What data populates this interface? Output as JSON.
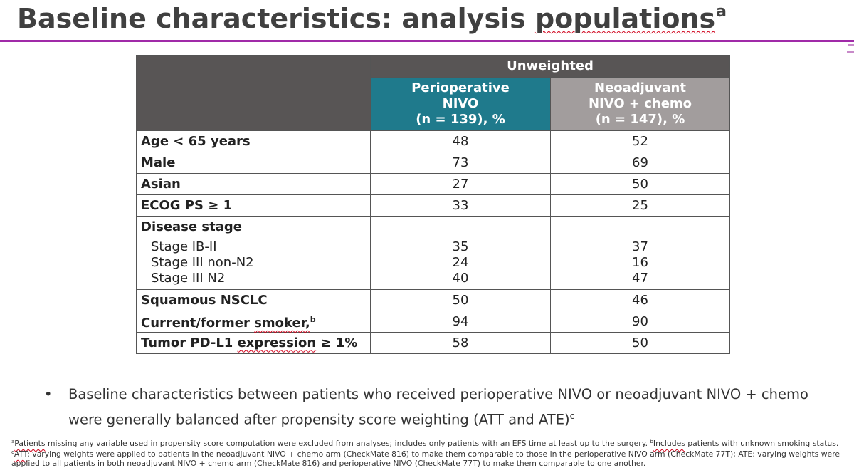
{
  "title": {
    "text_a": "Baseline characteristics: analysis ",
    "text_b": "populations",
    "superscript": "a"
  },
  "table": {
    "group_header": "Unweighted",
    "columns": [
      {
        "line1": "Perioperative",
        "line2": "NIVO",
        "line3": "(n = 139), %"
      },
      {
        "line1": "Neoadjuvant",
        "line2": "NIVO + chemo",
        "line3": "(n = 147), %"
      }
    ],
    "rows": [
      {
        "label": "Age < 65 years",
        "v1": "48",
        "v2": "52"
      },
      {
        "label": "Male",
        "v1": "73",
        "v2": "69"
      },
      {
        "label": "Asian",
        "v1": "27",
        "v2": "50"
      },
      {
        "label": "ECOG PS ≥ 1",
        "v1": "33",
        "v2": "25"
      }
    ],
    "disease_stage": {
      "label": "Disease stage",
      "subrows": [
        {
          "label": "Stage IB-II",
          "v1": "35",
          "v2": "37"
        },
        {
          "label": "Stage III non-N2",
          "v1": "24",
          "v2": "16"
        },
        {
          "label": "Stage III N2",
          "v1": "40",
          "v2": "47"
        }
      ]
    },
    "rows_after": [
      {
        "label": "Squamous NSCLC",
        "v1": "50",
        "v2": "46"
      },
      {
        "label_a": "Current/former ",
        "label_b": "smoker,",
        "sup": "b",
        "v1": "94",
        "v2": "90"
      },
      {
        "label_a": "Tumor PD-L1 ",
        "label_b": "expression",
        "label_c": " ≥ 1%",
        "v1": "58",
        "v2": "50"
      }
    ]
  },
  "bullet": {
    "symbol": "•",
    "text": "Baseline characteristics between patients who received perioperative NIVO or neoadjuvant NIVO + chemo were generally balanced after propensity score weighting (ATT and ATE)",
    "sup": "c"
  },
  "footnotes": {
    "a_mark": "a",
    "a_text_a": "Patients",
    "a_text_b": " missing any variable used in propensity score computation were excluded from analyses; includes only patients with an EFS time at least up to the surgery. ",
    "b_mark": "b",
    "b_text_a": "Includes",
    "b_text_b": " patients with unknown smoking status.",
    "c_mark": "c",
    "c_text_a": "ATT",
    "c_text_b": ": varying weights were applied to patients in the neoadjuvant NIVO + chemo arm (CheckMate 816) to make them comparable to those in the perioperative NIVO arm (CheckMate 77T); ATE: varying weights were applied to all patients in both neoadjuvant NIVO + chemo arm (CheckMate 816) and perioperative NIVO (CheckMate 77T) to make them comparable to one another."
  },
  "colors": {
    "title_rule": "#a02aa8",
    "header_dark": "#585555",
    "header_teal": "#1f7a8c",
    "header_gray": "#a29d9d"
  }
}
